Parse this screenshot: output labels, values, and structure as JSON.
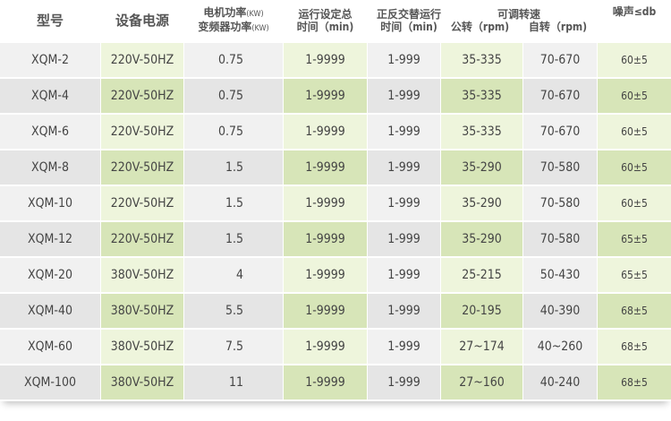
{
  "header": {
    "model": "型号",
    "power_supply": "设备电源",
    "motor_power_1": "电机功率",
    "motor_power_1_unit": "(KW)",
    "motor_power_2": "变频器功率",
    "motor_power_2_unit": "(KW)",
    "run_time_1": "运行设定总",
    "run_time_2": "时间（min)",
    "alt_time_1": "正反交替运行",
    "alt_time_2": "时间（min)",
    "speed": "可调转速",
    "revolution": "公转（rpm)",
    "rotation": "自转（rpm)",
    "noise": "噪声≤db"
  },
  "rows": [
    [
      "XQM-2",
      "220V-50HZ",
      "0.75",
      "1-9999",
      "1-999",
      "35-335",
      "70-670",
      "60±5"
    ],
    [
      "XQM-4",
      "220V-50HZ",
      "0.75",
      "1-9999",
      "1-999",
      "35-335",
      "70-670",
      "60±5"
    ],
    [
      "XQM-6",
      "220V-50HZ",
      "0.75",
      "1-9999",
      "1-999",
      "35-335",
      "70-670",
      "60±5"
    ],
    [
      "XQM-8",
      "220V-50HZ",
      "1.5",
      "1-9999",
      "1-999",
      "35-290",
      "70-580",
      "60±5"
    ],
    [
      "XQM-10",
      "220V-50HZ",
      "1.5",
      "1-9999",
      "1-999",
      "35-290",
      "70-580",
      "60±5"
    ],
    [
      "XQM-12",
      "220V-50HZ",
      "1.5",
      "1-9999",
      "1-999",
      "35-290",
      "70-580",
      "65±5"
    ],
    [
      "XQM-20",
      "380V-50HZ",
      "4",
      "1-9999",
      "1-999",
      "25-215",
      "50-430",
      "65±5"
    ],
    [
      "XQM-40",
      "380V-50HZ",
      "5.5",
      "1-9999",
      "1-999",
      "20-195",
      "40-390",
      "68±5"
    ],
    [
      "XQM-60",
      "380V-50HZ",
      "7.5",
      "1-9999",
      "1-999",
      "27~174",
      "40~260",
      "68±5"
    ],
    [
      "XQM-100",
      "380V-50HZ",
      "11",
      "1-9999",
      "1-999",
      "27~160",
      "40-240",
      "68±5"
    ]
  ]
}
